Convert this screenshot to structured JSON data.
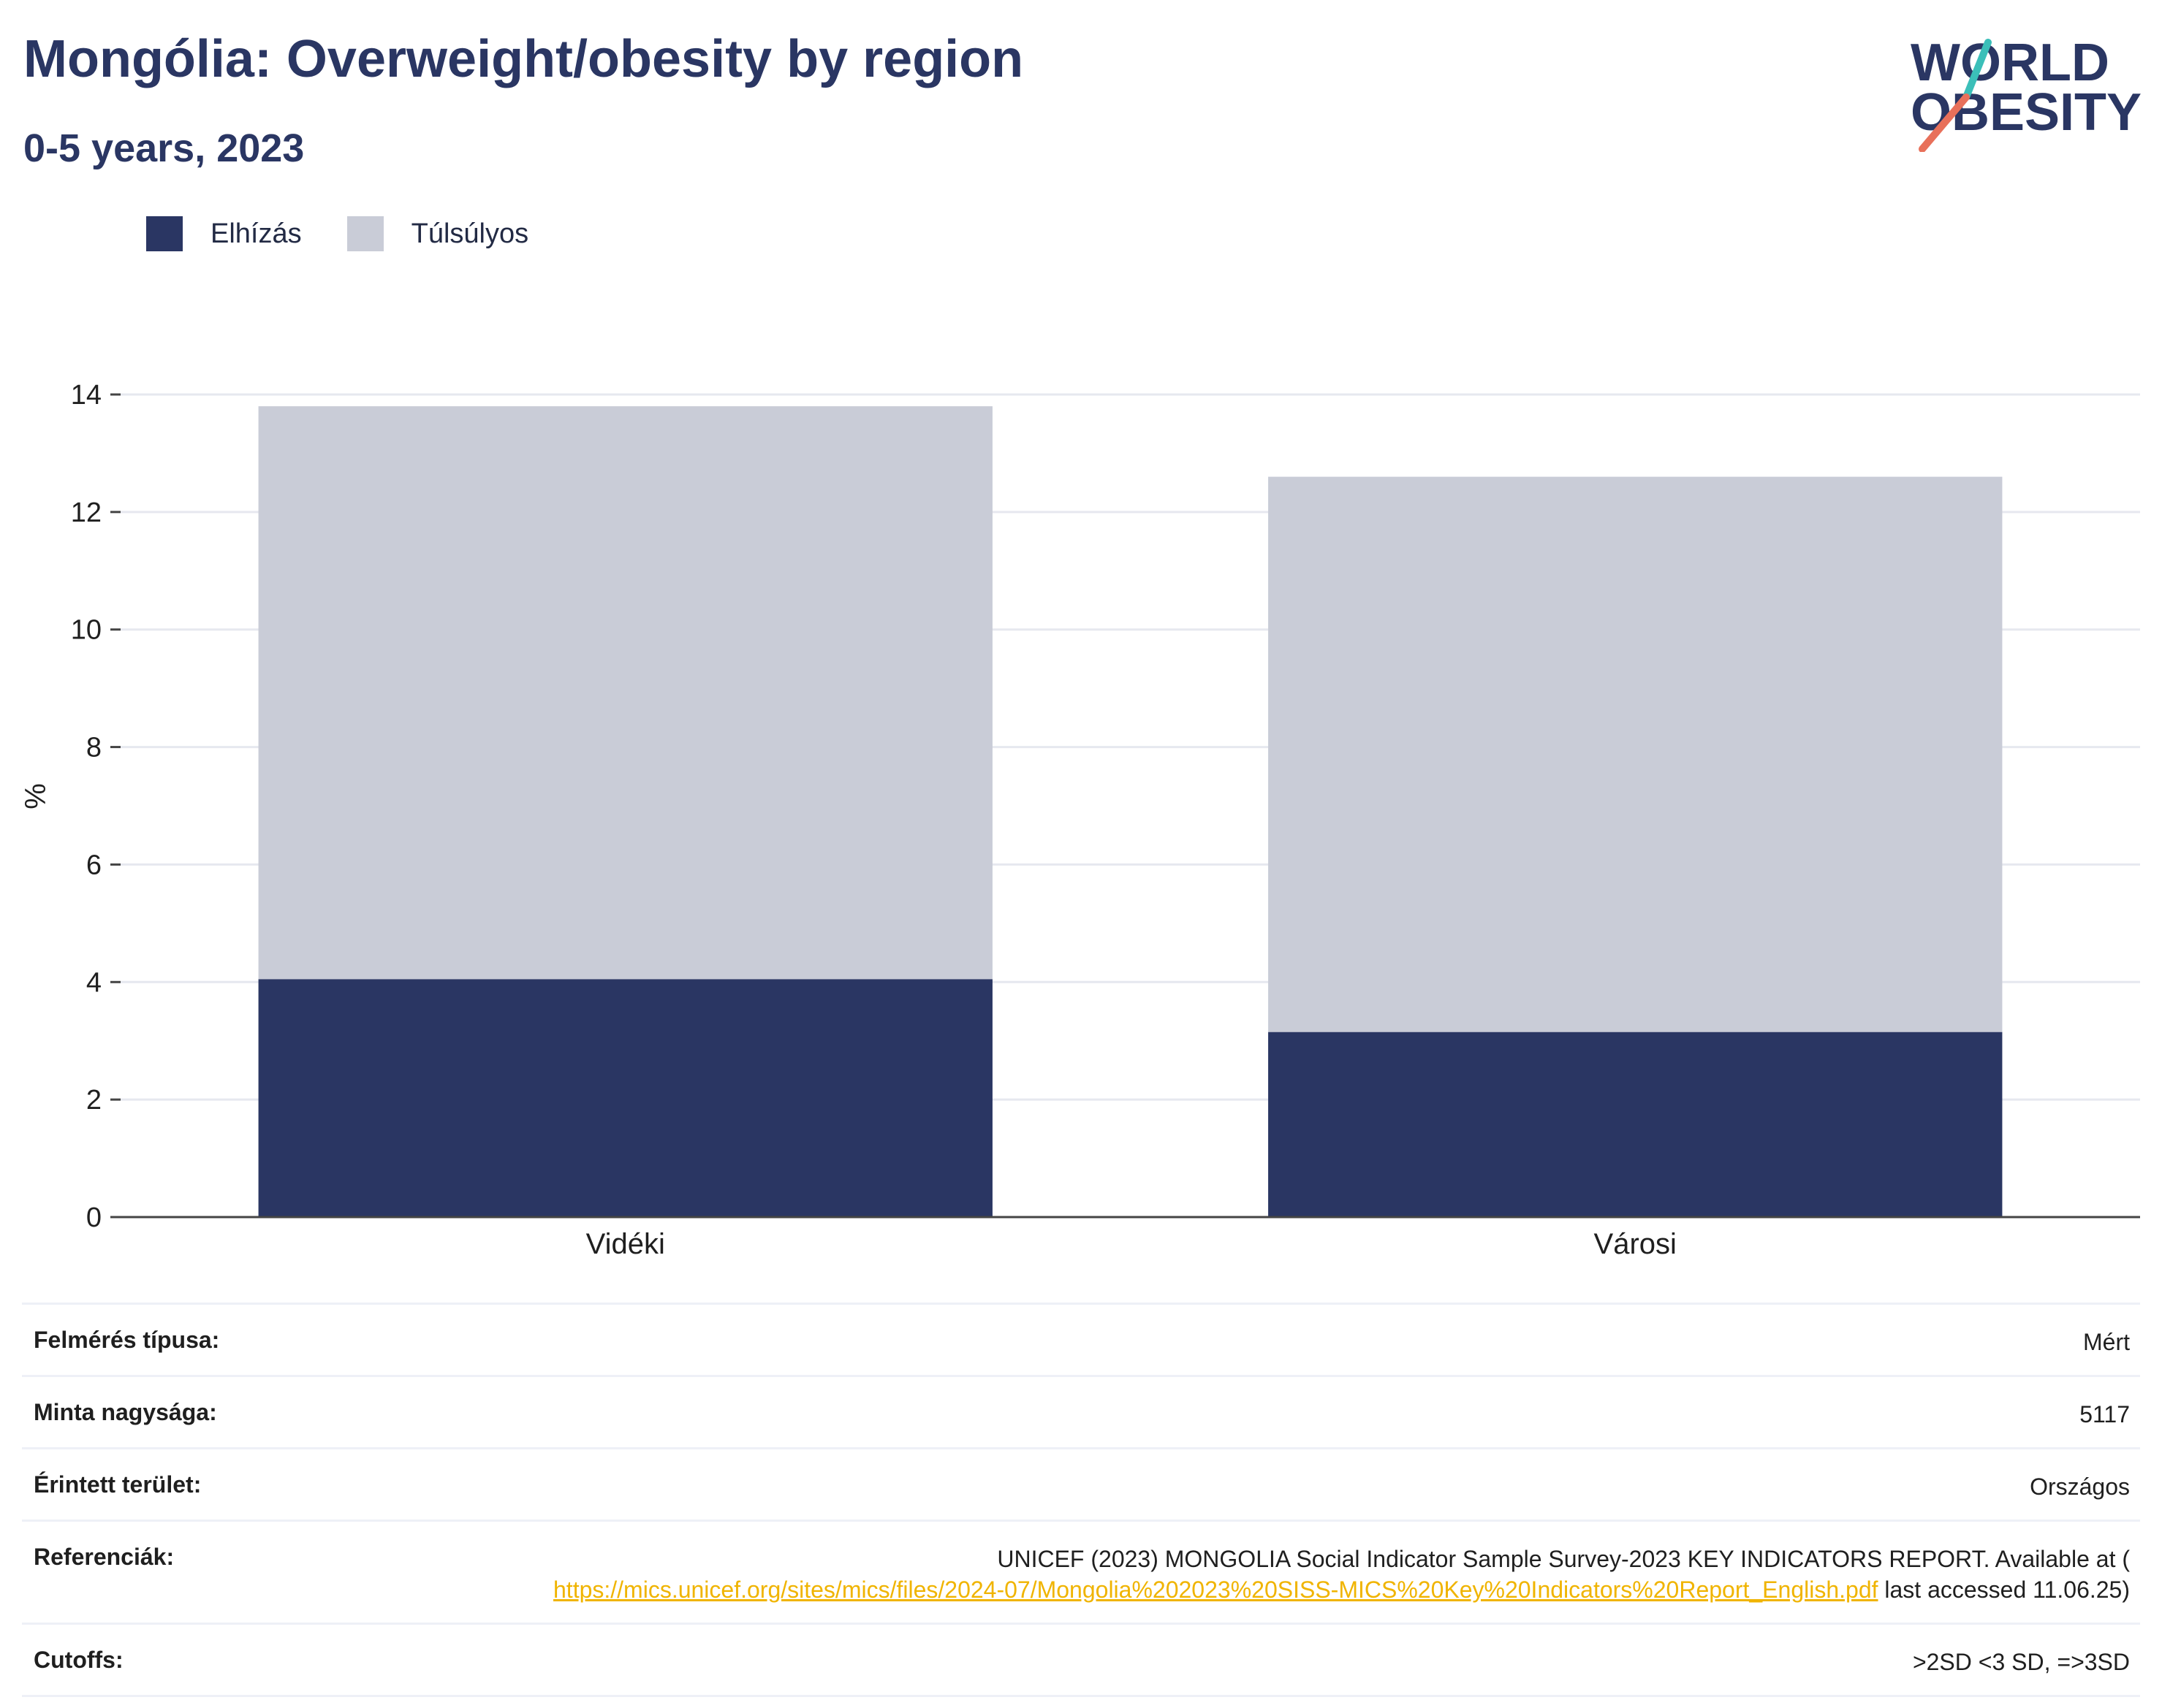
{
  "header": {
    "title": "Mongólia: Overweight/obesity by region",
    "subtitle": "0-5 years, 2023"
  },
  "logo": {
    "line1": "WORLD",
    "line2": "OBESITY",
    "slash_colors": [
      "#3bbfb9",
      "#e8705a"
    ]
  },
  "legend": {
    "items": [
      {
        "label": "Elhízás",
        "color": "#2a3663"
      },
      {
        "label": "Túlsúlyos",
        "color": "#c9ccd7"
      }
    ]
  },
  "chart_data": {
    "type": "bar",
    "stacked": true,
    "categories": [
      "Vidéki",
      "Városi"
    ],
    "series": [
      {
        "name": "Elhízás",
        "values": [
          4.05,
          3.15
        ],
        "color": "#2a3663"
      },
      {
        "name": "Túlsúlyos",
        "values": [
          9.75,
          9.45
        ],
        "color": "#c9ccd7"
      }
    ],
    "ylabel": "%",
    "ylim": [
      0,
      14
    ],
    "yticks": [
      "0",
      "2",
      "4",
      "6",
      "8",
      "10",
      "12",
      "14"
    ],
    "grid": true,
    "legend_position": "top-left"
  },
  "info": {
    "rows": [
      {
        "label": "Felmérés típusa:",
        "value": "Mért"
      },
      {
        "label": "Minta nagysága:",
        "value": "5117"
      },
      {
        "label": "Érintett terület:",
        "value": "Országos"
      },
      {
        "label": "Referenciák:",
        "value_prefix": "UNICEF (2023) MONGOLIA Social Indicator Sample Survey-2023 KEY INDICATORS REPORT. Available at (",
        "link": "https://mics.unicef.org/sites/mics/files/2024-07/Mongolia%202023%20SISS-MICS%20Key%20Indicators%20Report_English.pdf",
        "value_suffix": " last accessed 11.06.25)"
      },
      {
        "label": "Cutoffs:",
        "value": ">2SD <3 SD, =>3SD"
      }
    ]
  }
}
